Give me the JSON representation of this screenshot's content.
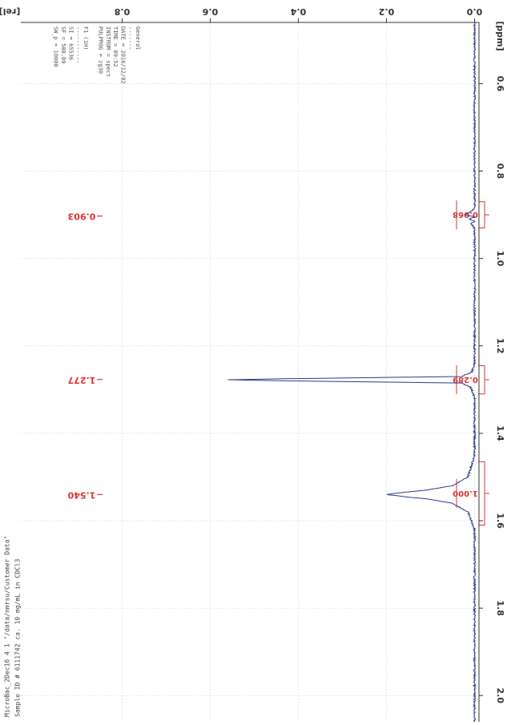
{
  "chart_data": {
    "type": "line",
    "x_axis_unit": "[ppm]",
    "y_axis_unit": "[rel]",
    "xlim": [
      0.46,
      2.06
    ],
    "ylim": [
      -0.01,
      1.03
    ],
    "x_ticks": [
      "0.6",
      "0.8",
      "1.0",
      "1.2",
      "1.4",
      "1.6",
      "1.8",
      "2.0"
    ],
    "y_ticks": [
      "0.0",
      "0.2",
      "0.4",
      "0.6",
      "0.8"
    ],
    "grid": true,
    "series": [
      {
        "points": [
          [
            0.46,
            0.0
          ],
          [
            0.88,
            0.0
          ],
          [
            0.89,
            0.004
          ],
          [
            0.9,
            0.022
          ],
          [
            0.905,
            0.0
          ],
          [
            0.91,
            0.012
          ],
          [
            0.915,
            0.0
          ],
          [
            0.92,
            0.009
          ],
          [
            0.93,
            0.0
          ],
          [
            1.24,
            0.0
          ],
          [
            1.26,
            0.006
          ],
          [
            1.27,
            0.03
          ],
          [
            1.275,
            0.42
          ],
          [
            1.2775,
            0.56
          ],
          [
            1.28,
            0.42
          ],
          [
            1.285,
            0.03
          ],
          [
            1.295,
            0.008
          ],
          [
            1.32,
            0.0
          ],
          [
            1.45,
            0.0
          ],
          [
            1.5,
            0.015
          ],
          [
            1.52,
            0.05
          ],
          [
            1.53,
            0.11
          ],
          [
            1.535,
            0.16
          ],
          [
            1.54,
            0.2
          ],
          [
            1.545,
            0.16
          ],
          [
            1.55,
            0.11
          ],
          [
            1.56,
            0.05
          ],
          [
            1.58,
            0.015
          ],
          [
            1.62,
            0.0
          ],
          [
            2.06,
            0.0
          ]
        ]
      }
    ],
    "peak_labels": [
      {
        "ppm": 0.903,
        "text": "0.903"
      },
      {
        "ppm": 1.277,
        "text": "1.277"
      },
      {
        "ppm": 1.54,
        "text": "1.540"
      }
    ],
    "integrals": [
      {
        "start": 0.87,
        "end": 0.93,
        "text": "0.068"
      },
      {
        "start": 1.245,
        "end": 1.31,
        "text": "0.289"
      },
      {
        "start": 1.465,
        "end": 1.61,
        "text": "1.000"
      }
    ],
    "colors": {
      "spectrum": "#2b3a8f",
      "annotation": "#e03030",
      "grid": "#d8d8d8",
      "axis": "#333333"
    }
  },
  "header_lines": [
    "MicroBac_2Dec16  4  1  \"/data/nmrsu/Customer Data\"",
    "Sample ID # 6111742 ca. 10 mg/mL in CDCl3"
  ],
  "params": [
    "General",
    "-------",
    "DATE = 2016/12/02",
    "TIME = 09:52",
    "INSTRUM = spect",
    "PULPROG = zg30",
    "",
    "F1 (1H)",
    "-----------",
    "SI = 65536",
    "SF = 500.09",
    "SW_p = 10000"
  ]
}
